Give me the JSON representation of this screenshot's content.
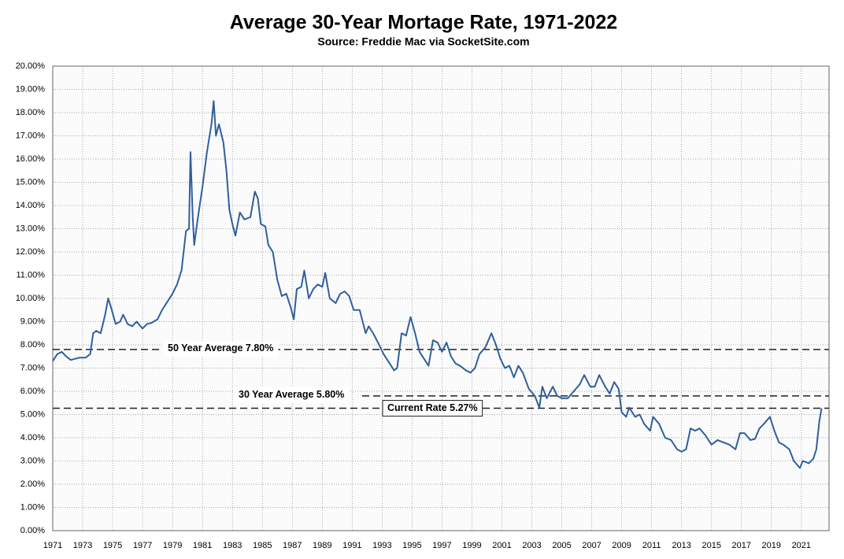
{
  "chart_data": {
    "type": "line",
    "title": "Average 30-Year Mortage Rate, 1971-2022",
    "subtitle": "Source: Freddie Mac via SocketSite.com",
    "x": [
      1971.0,
      1971.3,
      1971.6,
      1971.9,
      1972.2,
      1972.5,
      1972.8,
      1973.2,
      1973.5,
      1973.7,
      1973.9,
      1974.2,
      1974.5,
      1974.7,
      1974.9,
      1975.2,
      1975.5,
      1975.7,
      1976.0,
      1976.3,
      1976.6,
      1977.0,
      1977.3,
      1977.6,
      1978.0,
      1978.3,
      1978.6,
      1979.0,
      1979.3,
      1979.6,
      1979.9,
      1980.1,
      1980.2,
      1980.35,
      1980.45,
      1980.7,
      1981.0,
      1981.3,
      1981.6,
      1981.75,
      1981.9,
      1982.1,
      1982.4,
      1982.6,
      1982.8,
      1983.0,
      1983.2,
      1983.5,
      1983.8,
      1984.2,
      1984.5,
      1984.7,
      1984.9,
      1985.2,
      1985.4,
      1985.7,
      1986.0,
      1986.3,
      1986.6,
      1986.9,
      1987.1,
      1987.3,
      1987.6,
      1987.8,
      1988.1,
      1988.4,
      1988.7,
      1989.0,
      1989.2,
      1989.5,
      1989.9,
      1990.2,
      1990.5,
      1990.8,
      1991.1,
      1991.5,
      1991.9,
      1992.1,
      1992.4,
      1992.8,
      1993.1,
      1993.5,
      1993.8,
      1994.0,
      1994.3,
      1994.6,
      1994.9,
      1995.2,
      1995.5,
      1995.9,
      1996.1,
      1996.4,
      1996.7,
      1997.0,
      1997.3,
      1997.6,
      1997.9,
      1998.2,
      1998.6,
      1998.9,
      1999.2,
      1999.5,
      1999.9,
      2000.3,
      2000.6,
      2000.9,
      2001.2,
      2001.5,
      2001.8,
      2002.1,
      2002.4,
      2002.8,
      2003.2,
      2003.5,
      2003.7,
      2004.0,
      2004.4,
      2004.7,
      2005.0,
      2005.4,
      2005.8,
      2006.2,
      2006.5,
      2006.9,
      2007.2,
      2007.5,
      2007.9,
      2008.2,
      2008.5,
      2008.8,
      2009.0,
      2009.3,
      2009.5,
      2009.9,
      2010.2,
      2010.5,
      2010.9,
      2011.1,
      2011.5,
      2011.9,
      2012.3,
      2012.7,
      2013.0,
      2013.3,
      2013.6,
      2013.9,
      2014.2,
      2014.6,
      2015.0,
      2015.4,
      2015.8,
      2016.2,
      2016.6,
      2016.9,
      2017.2,
      2017.6,
      2017.9,
      2018.2,
      2018.5,
      2018.9,
      2019.2,
      2019.5,
      2019.8,
      2020.2,
      2020.5,
      2020.9,
      2021.1,
      2021.5,
      2021.8,
      2022.0,
      2022.2,
      2022.35
    ],
    "series": [
      {
        "color": "#2f5f9e",
        "values": [
          7.3,
          7.6,
          7.7,
          7.5,
          7.35,
          7.4,
          7.45,
          7.45,
          7.6,
          8.5,
          8.6,
          8.5,
          9.3,
          10.0,
          9.6,
          8.9,
          9.0,
          9.3,
          8.9,
          8.8,
          9.0,
          8.7,
          8.9,
          8.95,
          9.1,
          9.5,
          9.8,
          10.2,
          10.6,
          11.2,
          12.9,
          13.0,
          16.3,
          13.5,
          12.3,
          13.5,
          14.8,
          16.3,
          17.5,
          18.5,
          17.0,
          17.5,
          16.7,
          15.5,
          13.8,
          13.2,
          12.7,
          13.7,
          13.4,
          13.5,
          14.6,
          14.3,
          13.2,
          13.1,
          12.3,
          12.0,
          10.8,
          10.1,
          10.2,
          9.6,
          9.1,
          10.4,
          10.5,
          11.2,
          10.0,
          10.4,
          10.6,
          10.5,
          11.1,
          10.0,
          9.8,
          10.2,
          10.3,
          10.1,
          9.5,
          9.5,
          8.5,
          8.8,
          8.5,
          8.0,
          7.6,
          7.2,
          6.9,
          7.0,
          8.5,
          8.4,
          9.2,
          8.5,
          7.7,
          7.3,
          7.1,
          8.2,
          8.1,
          7.7,
          8.1,
          7.5,
          7.2,
          7.1,
          6.9,
          6.8,
          7.0,
          7.6,
          7.9,
          8.5,
          8.0,
          7.4,
          7.0,
          7.1,
          6.6,
          7.1,
          6.8,
          6.1,
          5.8,
          5.3,
          6.2,
          5.7,
          6.2,
          5.8,
          5.7,
          5.7,
          6.0,
          6.3,
          6.7,
          6.2,
          6.2,
          6.7,
          6.2,
          5.9,
          6.4,
          6.1,
          5.1,
          4.9,
          5.3,
          4.9,
          5.0,
          4.6,
          4.3,
          4.9,
          4.6,
          4.0,
          3.9,
          3.5,
          3.4,
          3.5,
          4.4,
          4.3,
          4.4,
          4.1,
          3.7,
          3.9,
          3.8,
          3.7,
          3.5,
          4.2,
          4.2,
          3.9,
          3.95,
          4.4,
          4.6,
          4.9,
          4.3,
          3.8,
          3.7,
          3.5,
          3.0,
          2.7,
          3.0,
          2.9,
          3.1,
          3.5,
          4.7,
          5.27
        ]
      }
    ],
    "xlim": [
      1971,
      2022.85
    ],
    "xticks": [
      1971,
      1973,
      1975,
      1977,
      1979,
      1981,
      1983,
      1985,
      1987,
      1989,
      1991,
      1993,
      1995,
      1997,
      1999,
      2001,
      2003,
      2005,
      2007,
      2009,
      2011,
      2013,
      2015,
      2017,
      2019,
      2021
    ],
    "ylim": [
      0,
      20
    ],
    "yticks": [
      {
        "value": 0,
        "label": "0.00%"
      },
      {
        "value": 1,
        "label": "1.00%"
      },
      {
        "value": 2,
        "label": "2.00%"
      },
      {
        "value": 3,
        "label": "3.00%"
      },
      {
        "value": 4,
        "label": "4.00%"
      },
      {
        "value": 5,
        "label": "5.00%"
      },
      {
        "value": 6,
        "label": "6.00%"
      },
      {
        "value": 7,
        "label": "7.00%"
      },
      {
        "value": 8,
        "label": "8.00%"
      },
      {
        "value": 9,
        "label": "9.00%"
      },
      {
        "value": 10,
        "label": "10.00%"
      },
      {
        "value": 11,
        "label": "11.00%"
      },
      {
        "value": 12,
        "label": "12.00%"
      },
      {
        "value": 13,
        "label": "13.00%"
      },
      {
        "value": 14,
        "label": "14.00%"
      },
      {
        "value": 15,
        "label": "15.00%"
      },
      {
        "value": 16,
        "label": "16.00%"
      },
      {
        "value": 17,
        "label": "17.00%"
      },
      {
        "value": 18,
        "label": "18.00%"
      },
      {
        "value": 19,
        "label": "19.00%"
      },
      {
        "value": 20,
        "label": "20.00%"
      }
    ],
    "grid": true,
    "annotations": [
      {
        "text": "50 Year Average 7.80%",
        "value": 7.8
      },
      {
        "text": "30 Year Average 5.80%",
        "value": 5.8
      },
      {
        "text": "Current Rate 5.27%",
        "value": 5.27
      }
    ]
  }
}
